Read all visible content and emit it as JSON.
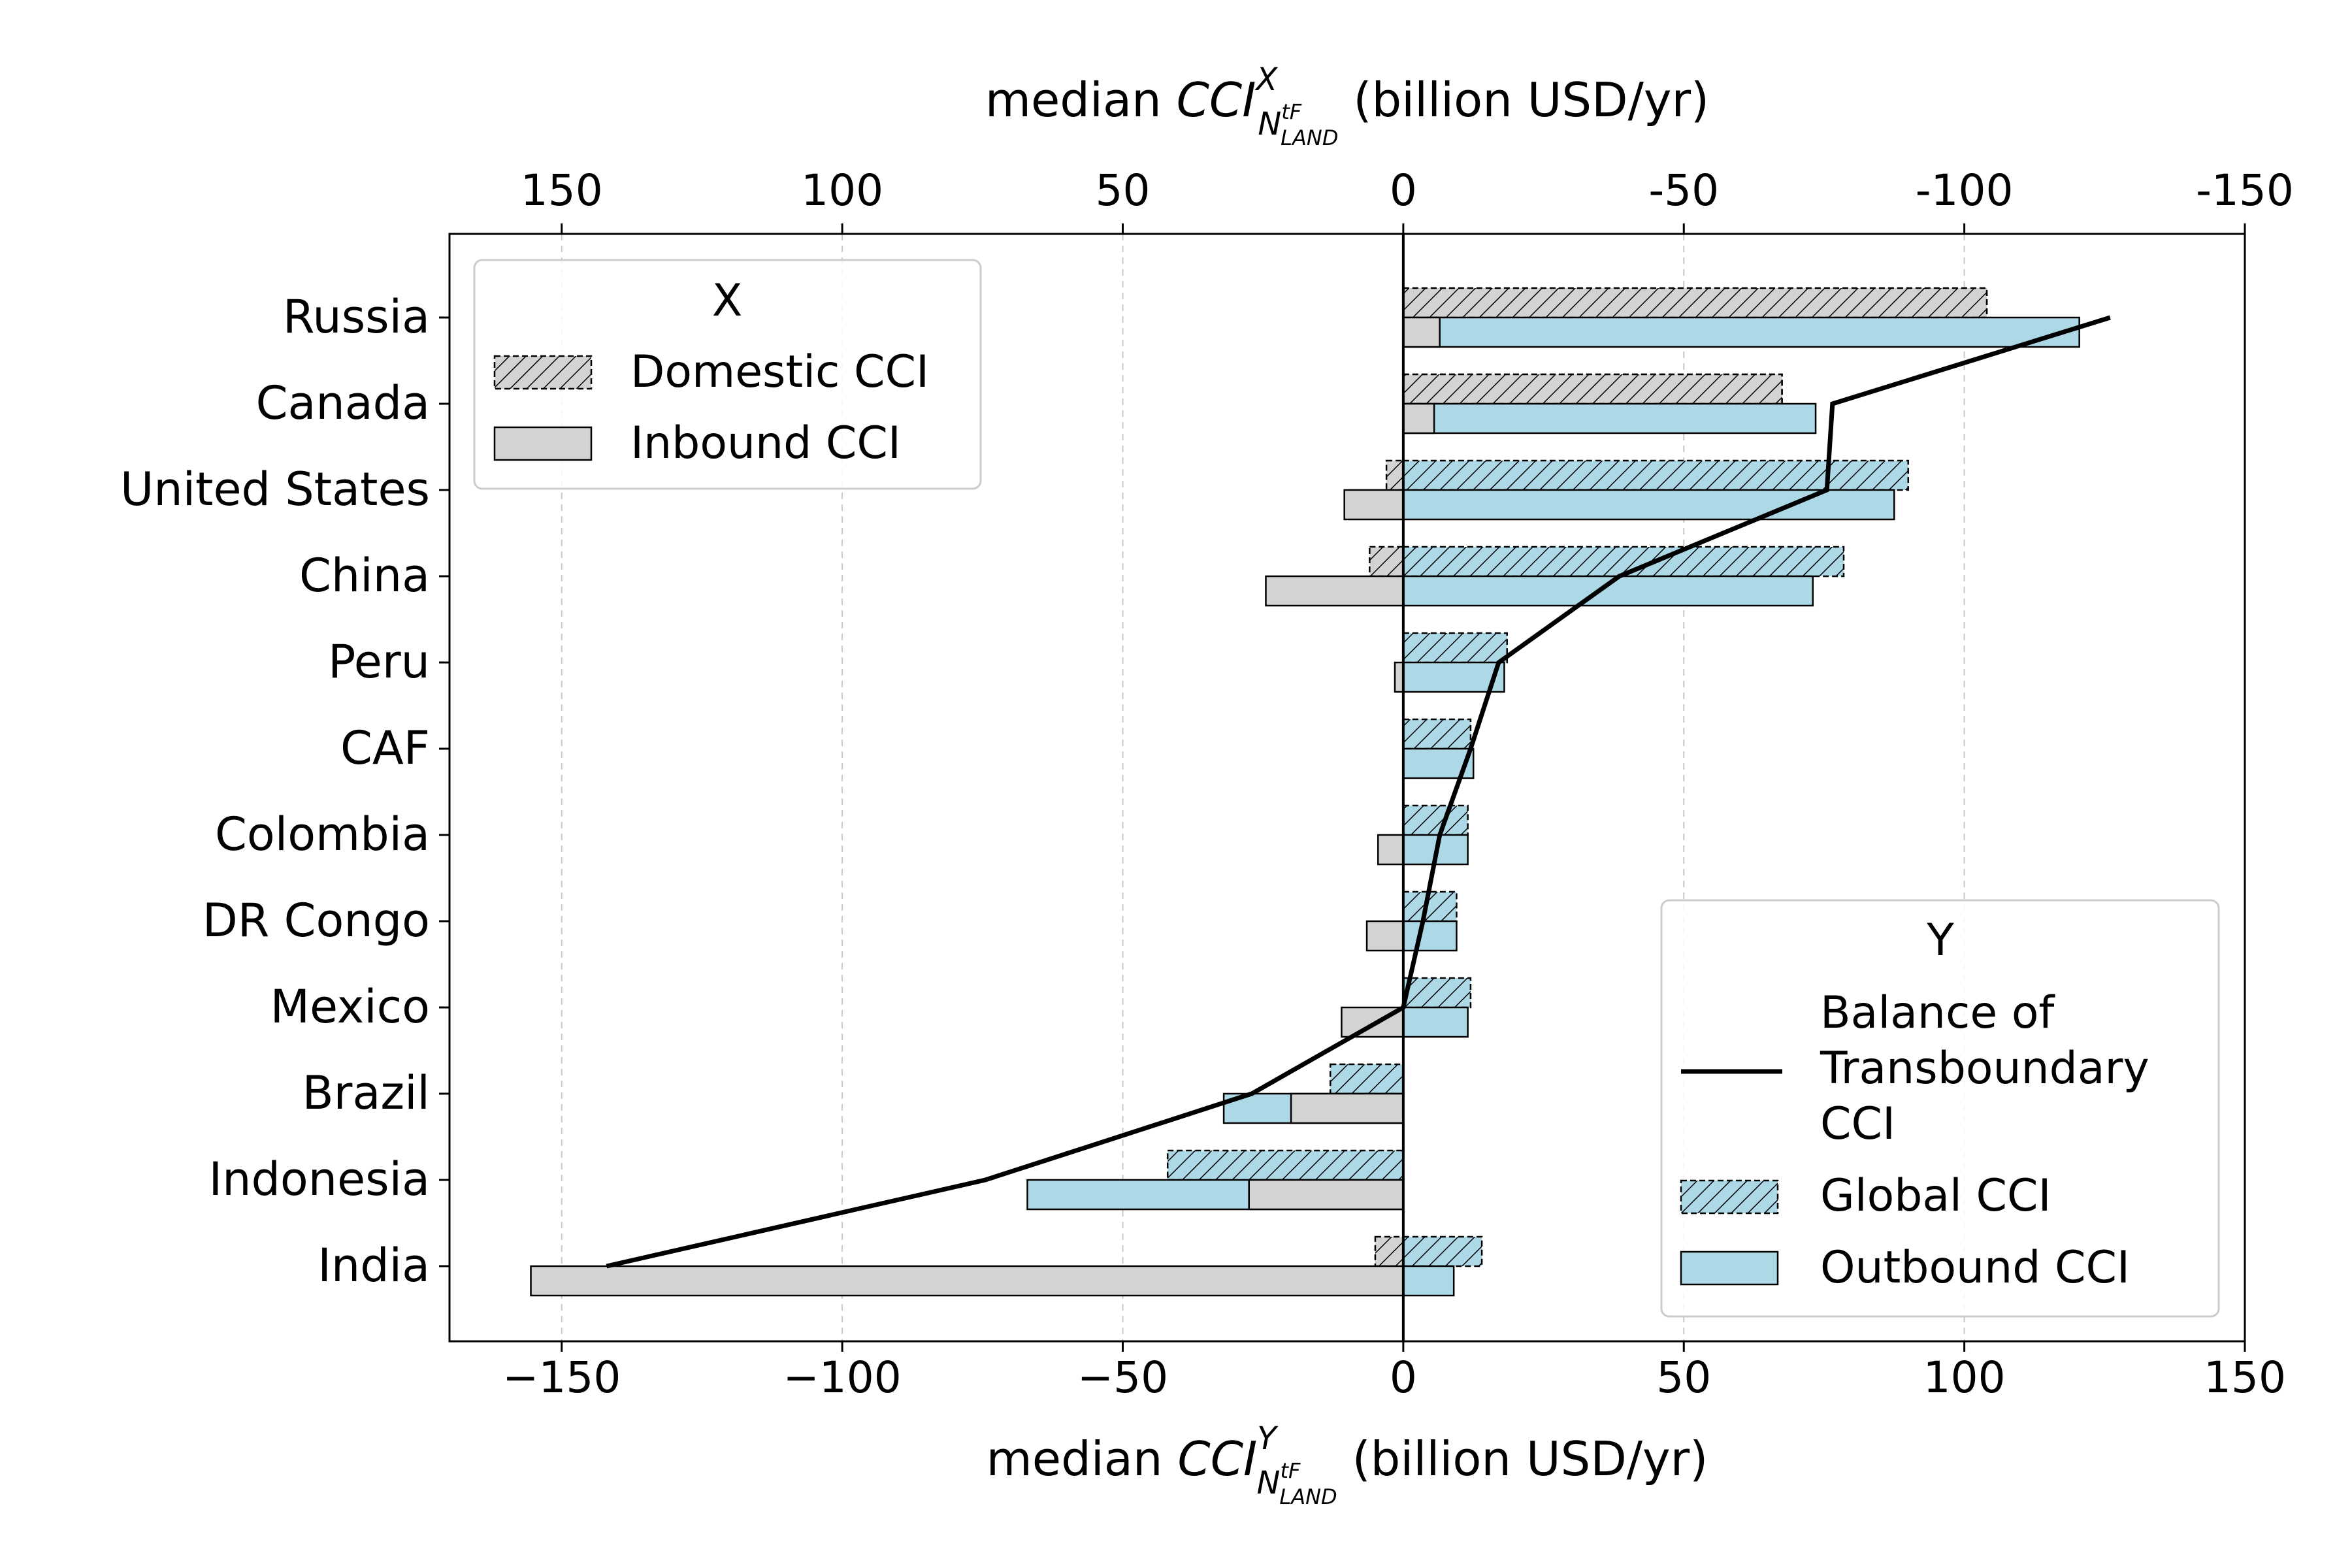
{
  "chart_data": {
    "type": "bar",
    "orientation": "horizontal",
    "categories": [
      "Russia",
      "Canada",
      "United States",
      "China",
      "Peru",
      "CAF",
      "Colombia",
      "DR Congo",
      "Mexico",
      "Brazil",
      "Indonesia",
      "India"
    ],
    "bottom_axis": {
      "label_prefix": "median ",
      "label_cci": "CCI",
      "label_sup": "Y",
      "label_sub": "N",
      "label_sub_sup": "tF",
      "label_sub_sub": "LAND",
      "label_suffix": " (billion USD/yr)",
      "range": [
        -170,
        150
      ],
      "ticks": [
        -150,
        -100,
        -50,
        0,
        50,
        100,
        150
      ],
      "tick_labels": [
        "−150",
        "−100",
        "−50",
        "0",
        "50",
        "100",
        "150"
      ]
    },
    "top_axis": {
      "label_prefix": "median ",
      "label_cci": "CCI",
      "label_sup": "X",
      "label_sub": "N",
      "label_sub_sup": "tF",
      "label_sub_sub": "LAND",
      "label_suffix": " (billion USD/yr)",
      "reversed": true,
      "ticks": [
        150,
        100,
        50,
        0,
        -50,
        -100,
        -150
      ],
      "tick_labels": [
        "150",
        "100",
        "50",
        "0",
        "-50",
        "-100",
        "-150"
      ]
    },
    "grid": "vertical dashed",
    "series": [
      {
        "name": "Domestic CCI",
        "axis": "X",
        "values": [
          104,
          67.5,
          -3,
          -6,
          0,
          0,
          0,
          0,
          0,
          0,
          0,
          -5
        ]
      },
      {
        "name": "Inbound CCI",
        "axis": "X",
        "values": [
          6.5,
          5.5,
          -10.5,
          -24.5,
          -1.5,
          0,
          -4.5,
          -6.5,
          -11,
          -20,
          -27.5,
          -155.5
        ]
      },
      {
        "name": "Global CCI",
        "axis": "Y",
        "values": [
          104,
          67.5,
          90,
          78.5,
          18.5,
          12,
          11.5,
          9.5,
          12,
          -13,
          -42,
          14
        ]
      },
      {
        "name": "Outbound CCI",
        "axis": "Y",
        "values": [
          120.5,
          73.5,
          87.5,
          73,
          18,
          12.5,
          11.5,
          9.5,
          11.5,
          -32,
          -67,
          9
        ]
      },
      {
        "name": "Balance of Transboundary CCI",
        "axis": "Y",
        "type": "line",
        "values": [
          126,
          76.5,
          75.5,
          38.5,
          17,
          12,
          6.5,
          3.5,
          0,
          -27,
          -74.5,
          -142
        ]
      }
    ],
    "legends": [
      {
        "title": "X",
        "position": "top-left",
        "entries": [
          "Domestic CCI",
          "Inbound CCI"
        ]
      },
      {
        "title": "Y",
        "position": "bottom-right",
        "entries": [
          "Balance of Transboundary CCI",
          "Global CCI",
          "Outbound CCI"
        ]
      }
    ],
    "legend_y_line_label": [
      "Balance of",
      "Transboundary",
      "CCI"
    ],
    "colors": {
      "inbound_fill": "#d3d3d3",
      "outbound_fill": "#add8e6",
      "line": "#000000",
      "edge": "#000000",
      "grid": "#c8c8c8"
    }
  }
}
